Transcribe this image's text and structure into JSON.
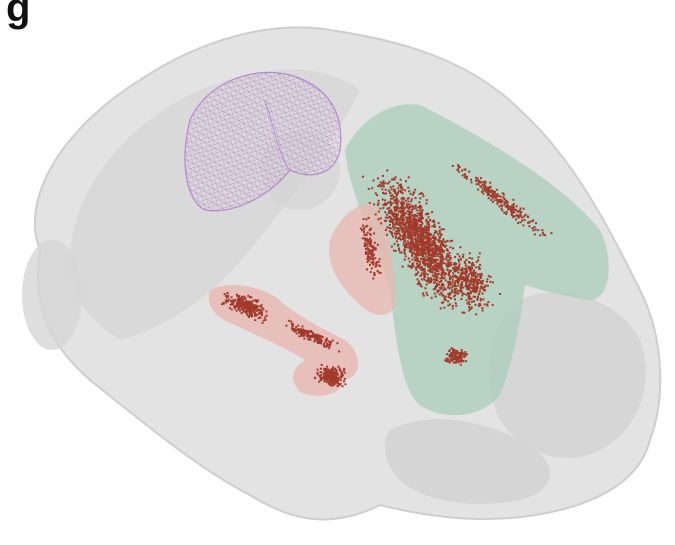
{
  "figure": {
    "panel_label": "g",
    "colors": {
      "brain_outline": "#d9d9d9",
      "brain_inner": "#cfcfcf",
      "wireframe_region": "#c48ad6",
      "green_region": "#a9cdb8",
      "pink_region": "#e8b7b0",
      "points": "#a23a2c"
    }
  }
}
